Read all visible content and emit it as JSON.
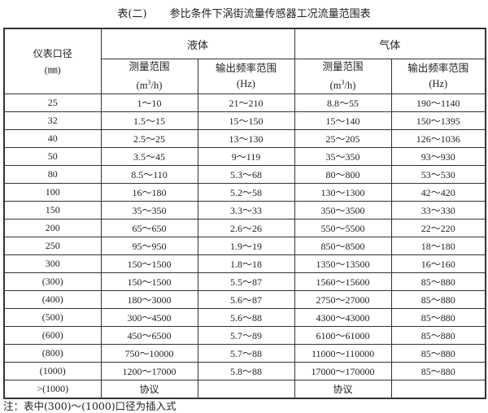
{
  "title": {
    "label": "表(二)",
    "text": "参比条件下涡街流量传感器工况流量范围表"
  },
  "header": {
    "diameter": "仪表口径",
    "diameter_unit": "(㎜)",
    "liquid": "液体",
    "gas": "气体",
    "flow_range": "测量范围",
    "flow_unit_pre": "(m",
    "flow_unit_sup": "3",
    "flow_unit_post": "/h)",
    "freq_range": "输出频率范围",
    "freq_unit": "(Hz)"
  },
  "rows": [
    [
      "25",
      "1～10",
      "21～210",
      "8.8～55",
      "190～1140"
    ],
    [
      "32",
      "1.5～15",
      "15～150",
      "15～140",
      "150～1395"
    ],
    [
      "40",
      "2.5～25",
      "13～130",
      "25～205",
      "126～1036"
    ],
    [
      "50",
      "3.5～45",
      "9～119",
      "35～350",
      "93～930"
    ],
    [
      "80",
      "8.5～110",
      "5.3～68",
      "80～800",
      "53～530"
    ],
    [
      "100",
      "16～180",
      "5.2～58",
      "130～1300",
      "42～420"
    ],
    [
      "150",
      "35～350",
      "3.3～33",
      "350～3500",
      "33～330"
    ],
    [
      "200",
      "65～650",
      "2.6～26",
      "550～5500",
      "22～220"
    ],
    [
      "250",
      "95～950",
      "1.9～19",
      "850～8500",
      "18～180"
    ],
    [
      "300",
      "150～1500",
      "1.8～18",
      "1350～13500",
      "16～160"
    ],
    [
      "(300)",
      "150～1500",
      "5.5～87",
      "1560～15600",
      "85～880"
    ],
    [
      "(400)",
      "180～3000",
      "5.6～87",
      "2750～27000",
      "85～880"
    ],
    [
      "(500)",
      "300～4500",
      "5.6～88",
      "4300～43000",
      "85～880"
    ],
    [
      "(600)",
      "450～6500",
      "5.7～89",
      "6100～61000",
      "85～880"
    ],
    [
      "(800)",
      "750～10000",
      "5.7～88",
      "11000～110000",
      "85～880"
    ],
    [
      "(1000)",
      "1200～17000",
      "5.8～88",
      "17000～170000",
      "85～880"
    ],
    [
      ">(1000)",
      "协议",
      "",
      "协议",
      ""
    ]
  ],
  "note": "注：表中(300)～(1000)口径为插入式"
}
